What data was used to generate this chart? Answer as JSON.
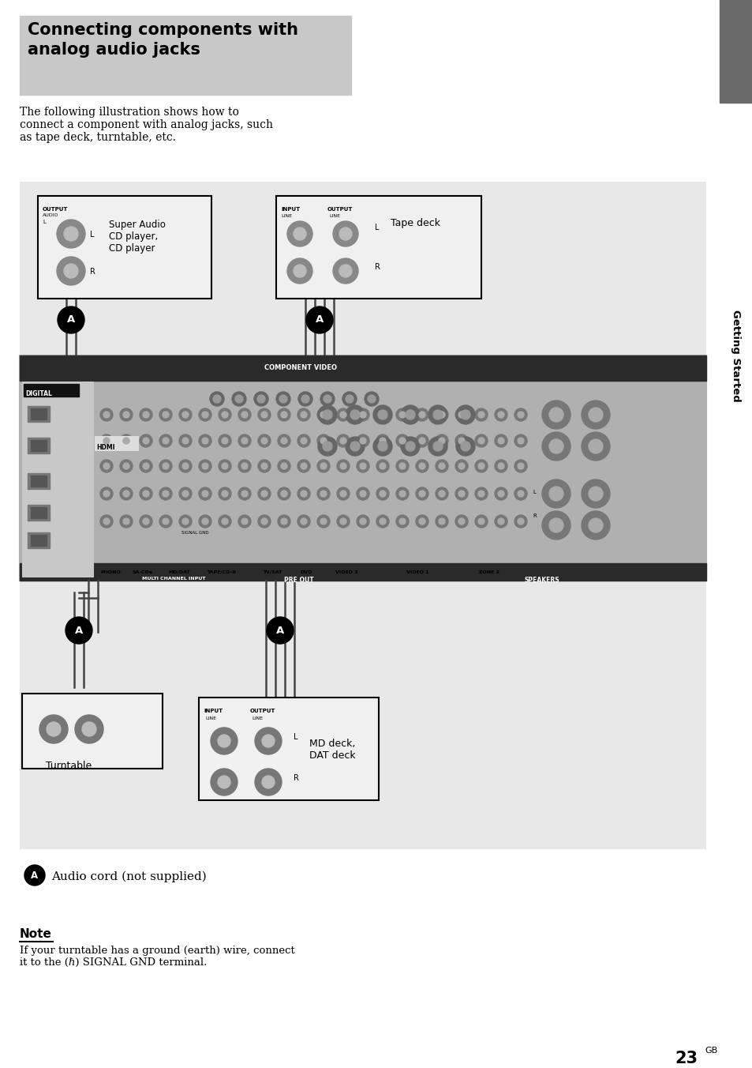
{
  "bg_color": "#ffffff",
  "title_box_color": "#c8c8c8",
  "title_text": "Connecting components with\nanalog audio jacks",
  "title_fontsize": 15,
  "title_text_color": "#000000",
  "sidebar_color": "#6a6a6a",
  "sidebar_text": "Getting Started",
  "body_text": "The following illustration shows how to\nconnect a component with analog jacks, such\nas tape deck, turntable, etc.",
  "body_fontsize": 10,
  "note_title": "Note",
  "note_body": "If your turntable has a ground (earth) wire, connect\nit to the (ℏ) SIGNAL GND terminal.",
  "legend_text": "Audio cord (not supplied)",
  "page_number": "23",
  "page_suffix": "GB",
  "label_cd": "Super Audio\nCD player,\nCD player",
  "label_tape": "Tape deck",
  "label_turntable": "Turntable",
  "label_md": "MD deck,\nDAT deck",
  "wire_color": "#444444",
  "recv_color": "#b5b5b5",
  "recv_dark": "#555555",
  "recv_darker": "#333333"
}
